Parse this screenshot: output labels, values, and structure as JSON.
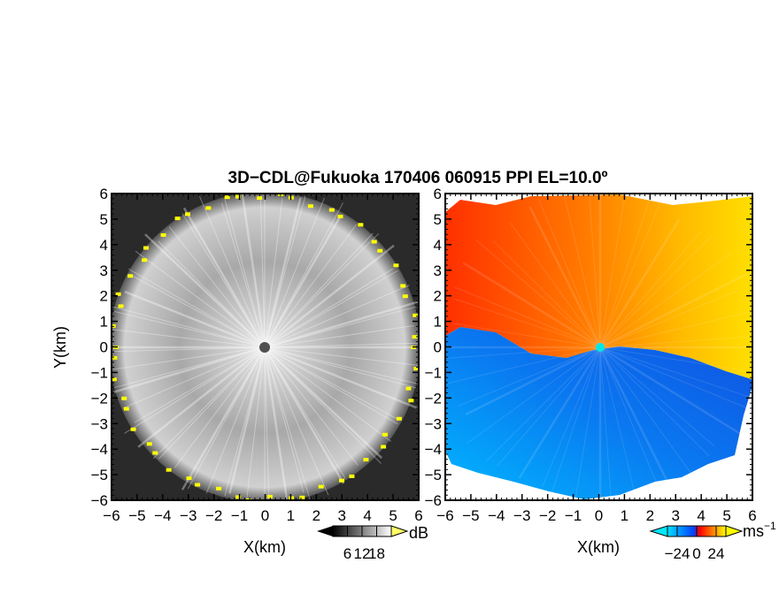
{
  "title": "3D−CDL@Fukuoka 170406 060915 PPI EL=10.0º",
  "chart_data": [
    {
      "type": "heatmap",
      "panel": "reflectivity",
      "xlabel": "X(km)",
      "ylabel": "Y(km)",
      "xlim": [
        -6,
        6
      ],
      "ylim": [
        -6,
        6
      ],
      "xticks": [
        "−6",
        "−5",
        "−4",
        "−3",
        "−2",
        "−1",
        "0",
        "1",
        "2",
        "3",
        "4",
        "5",
        "6"
      ],
      "yticks": [
        "6",
        "5",
        "4",
        "3",
        "2",
        "1",
        "0",
        "−1",
        "−2",
        "−3",
        "−4",
        "−5",
        "−6"
      ],
      "colorbar": {
        "unit": "dB",
        "ticks": [
          "6",
          "12",
          "18"
        ],
        "range": [
          0,
          24
        ],
        "colors": [
          "#000000",
          "#ffffff"
        ],
        "extend": "both"
      },
      "edge_color": "#ffff00",
      "center_marker_color": "#505050"
    },
    {
      "type": "heatmap",
      "panel": "doppler-velocity",
      "xlabel": "X(km)",
      "ylabel": "",
      "xlim": [
        -6,
        6
      ],
      "ylim": [
        -6,
        6
      ],
      "xticks": [
        "−6",
        "−5",
        "−4",
        "−3",
        "−2",
        "−1",
        "0",
        "1",
        "2",
        "3",
        "4",
        "5",
        "6"
      ],
      "yticks": [
        "6",
        "5",
        "4",
        "3",
        "2",
        "1",
        "0",
        "−1",
        "−2",
        "−3",
        "−4",
        "−5",
        "−6"
      ],
      "colorbar": {
        "unit": "ms",
        "unit_exponent": "−1",
        "ticks": [
          "−24",
          "0",
          "24"
        ],
        "range": [
          -36,
          36
        ],
        "colors": [
          "#00e0ff",
          "#0040ff",
          "#ff0000",
          "#ffff00"
        ],
        "extend": "both"
      },
      "center_marker_color": "#00e8e8"
    }
  ]
}
